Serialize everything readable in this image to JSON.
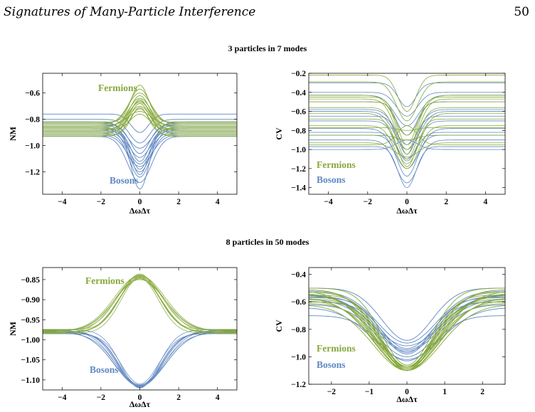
{
  "page": {
    "running_header": "Signatures of Many-Particle Interference",
    "page_number": "50"
  },
  "sections": [
    {
      "title": "3 particles in 7 modes"
    },
    {
      "title": "8 particles in 50 modes"
    }
  ],
  "colors": {
    "fermions": "#86a83a",
    "bosons": "#5f87c1"
  },
  "chart_data": [
    {
      "type": "line",
      "section": "3 particles in 7 modes",
      "xlabel": "ΔωΔτ",
      "ylabel": "NM",
      "xlim": [
        -5,
        5
      ],
      "ylim": [
        -1.37,
        -0.45
      ],
      "xticks": [
        -4,
        -2,
        0,
        2,
        4
      ],
      "yticks": [
        -0.6,
        -0.8,
        -1.0,
        -1.2
      ],
      "ytick_labels": [
        "−0.6",
        "−0.8",
        "−1.0",
        "−1.2"
      ],
      "xtick_labels": [
        "−4",
        "−2",
        "0",
        "2",
        "4"
      ],
      "annotations": [
        {
          "text": "Fermions",
          "series": "Fermions"
        },
        {
          "text": "Bosons",
          "series": "Bosons"
        }
      ],
      "series": [
        {
          "name": "Fermions",
          "curve_width": 1.2,
          "baselines": [
            -0.82,
            -0.83,
            -0.84,
            -0.85,
            -0.86,
            -0.87,
            -0.88,
            -0.89,
            -0.9,
            -0.91,
            -0.92,
            -0.93,
            -0.85,
            -0.88
          ],
          "peaks": [
            -0.54,
            -0.57,
            -0.6,
            -0.62,
            -0.64,
            -0.65,
            -0.66,
            -0.67,
            -0.68,
            -0.7,
            -0.71,
            -0.72,
            -0.74,
            -0.76
          ]
        },
        {
          "name": "Bosons",
          "curve_width": 1.2,
          "baselines": [
            -0.76,
            -0.8,
            -0.82,
            -0.84,
            -0.86,
            -0.88,
            -0.9,
            -0.92,
            -0.85,
            -0.87,
            -0.89,
            -0.91,
            -0.93,
            -0.83
          ],
          "peaks": [
            -0.9,
            -0.98,
            -1.02,
            -1.06,
            -1.09,
            -1.12,
            -1.14,
            -1.16,
            -1.18,
            -1.2,
            -1.22,
            -1.24,
            -1.28,
            -1.33
          ]
        }
      ]
    },
    {
      "type": "line",
      "section": "3 particles in 7 modes",
      "xlabel": "ΔωΔτ",
      "ylabel": "CV",
      "xlim": [
        -5,
        5
      ],
      "ylim": [
        -1.47,
        -0.2
      ],
      "xticks": [
        -4,
        -2,
        0,
        2,
        4
      ],
      "yticks": [
        -0.2,
        -0.4,
        -0.6,
        -0.8,
        -1.0,
        -1.2,
        -1.4
      ],
      "ytick_labels": [
        "−0.2",
        "−0.4",
        "−0.6",
        "−0.8",
        "−1.0",
        "−1.2",
        "−1.4"
      ],
      "xtick_labels": [
        "−4",
        "−2",
        "0",
        "2",
        "4"
      ],
      "annotations": [
        {
          "text": "Fermions",
          "series": "Fermions"
        },
        {
          "text": "Bosons",
          "series": "Bosons"
        }
      ],
      "series": [
        {
          "name": "Fermions",
          "curve_width": 1.0,
          "baselines": [
            -0.22,
            -0.29,
            -0.43,
            -0.45,
            -0.47,
            -0.5,
            -0.56,
            -0.62,
            -0.68,
            -0.75,
            -0.77,
            -0.85,
            -0.93,
            -0.95
          ],
          "peaks": [
            -0.6,
            -0.7,
            -0.85,
            -0.95,
            -1.0,
            -1.05,
            -1.1,
            -1.15,
            -1.18,
            -1.2,
            -0.8,
            -0.9,
            -1.08,
            -0.75
          ]
        },
        {
          "name": "Bosons",
          "curve_width": 1.0,
          "baselines": [
            -0.3,
            -0.4,
            -0.43,
            -0.5,
            -0.58,
            -0.65,
            -0.7,
            -0.78,
            -0.85,
            -0.9,
            -0.97,
            -1.0,
            -0.6,
            -0.82
          ],
          "peaks": [
            -0.55,
            -0.65,
            -0.75,
            -0.85,
            -0.95,
            -1.05,
            -1.12,
            -1.2,
            -1.28,
            -1.35,
            -1.4,
            -0.9,
            -1.0,
            -1.1
          ]
        }
      ]
    },
    {
      "type": "line",
      "section": "8 particles in 50 modes",
      "xlabel": "ΔωΔτ",
      "ylabel": "NM",
      "xlim": [
        -5,
        5
      ],
      "ylim": [
        -1.125,
        -0.82
      ],
      "xticks": [
        -4,
        -2,
        0,
        2,
        4
      ],
      "yticks": [
        -0.85,
        -0.9,
        -0.95,
        -1.0,
        -1.05,
        -1.1
      ],
      "ytick_labels": [
        "−0.85",
        "−0.90",
        "−0.95",
        "−1.00",
        "−1.05",
        "−1.10"
      ],
      "xtick_labels": [
        "−4",
        "−2",
        "0",
        "2",
        "4"
      ],
      "annotations": [
        {
          "text": "Fermions",
          "series": "Fermions"
        },
        {
          "text": "Bosons",
          "series": "Bosons"
        }
      ],
      "series": [
        {
          "name": "Fermions",
          "curve_width": 0.7,
          "baselines": [
            -0.974,
            -0.976,
            -0.978,
            -0.98,
            -0.982,
            -0.984,
            -0.985,
            -0.979,
            -0.981,
            -0.977
          ],
          "peaks": [
            -0.836,
            -0.838,
            -0.84,
            -0.842,
            -0.844,
            -0.846,
            -0.848,
            -0.85,
            -0.845,
            -0.841
          ]
        },
        {
          "name": "Bosons",
          "curve_width": 0.7,
          "baselines": [
            -0.975,
            -0.977,
            -0.979,
            -0.981,
            -0.983,
            -0.985,
            -0.978,
            -0.98,
            -0.982,
            -0.976
          ],
          "peaks": [
            -1.12,
            -1.118,
            -1.116,
            -1.114,
            -1.112,
            -1.11,
            -1.115,
            -1.113,
            -1.119,
            -1.117
          ]
        }
      ]
    },
    {
      "type": "line",
      "section": "8 particles in 50 modes",
      "xlabel": "ΔωΔτ",
      "ylabel": "CV",
      "xlim": [
        -2.6,
        2.6
      ],
      "ylim": [
        -1.2,
        -0.35
      ],
      "xticks": [
        -2,
        -1,
        0,
        1,
        2
      ],
      "yticks": [
        -0.4,
        -0.6,
        -0.8,
        -1.0,
        -1.2
      ],
      "ytick_labels": [
        "−0.4",
        "−0.6",
        "−0.8",
        "−1.0",
        "−1.2"
      ],
      "xtick_labels": [
        "−2",
        "−1",
        "0",
        "1",
        "2"
      ],
      "annotations": [
        {
          "text": "Fermions",
          "series": "Fermions"
        },
        {
          "text": "Bosons",
          "series": "Bosons"
        }
      ],
      "series": [
        {
          "name": "Fermions",
          "curve_width": 0.9,
          "baselines": [
            -0.5,
            -0.51,
            -0.52,
            -0.53,
            -0.54,
            -0.55,
            -0.56,
            -0.57,
            -0.58,
            -0.59,
            -0.6,
            -0.61,
            -0.62,
            -0.53
          ],
          "peaks": [
            -1.06,
            -1.07,
            -1.07,
            -1.08,
            -1.08,
            -1.08,
            -1.09,
            -1.09,
            -1.09,
            -1.1,
            -1.1,
            -1.1,
            -1.1,
            -1.07
          ]
        },
        {
          "name": "Bosons",
          "curve_width": 0.9,
          "baselines": [
            -0.5,
            -0.52,
            -0.54,
            -0.56,
            -0.58,
            -0.6,
            -0.62,
            -0.64,
            -0.7,
            -0.55,
            -0.57
          ],
          "peaks": [
            -0.88,
            -0.9,
            -0.92,
            -0.94,
            -0.96,
            -0.98,
            -1.0,
            -1.02,
            -1.03,
            -0.95,
            -0.97
          ]
        }
      ]
    }
  ]
}
